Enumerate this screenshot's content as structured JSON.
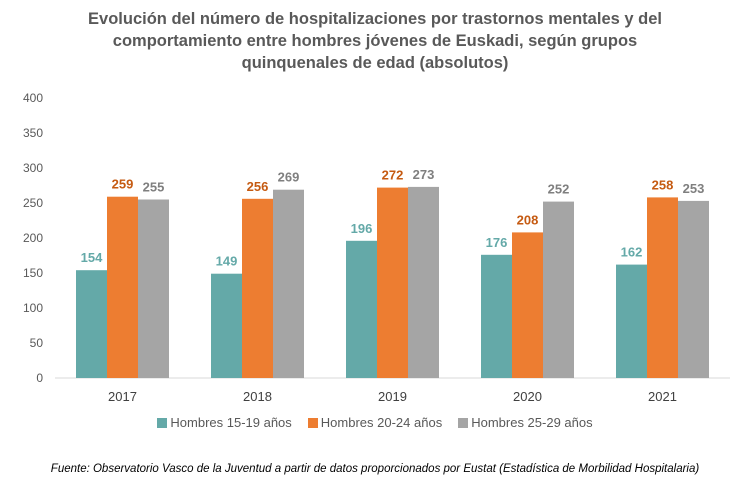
{
  "chart_data": {
    "type": "bar",
    "title": [
      "Evolución del número de hospitalizaciones por trastornos mentales y del",
      "comportamiento entre hombres jóvenes de Euskadi, según grupos",
      "quinquenales de edad (absolutos)"
    ],
    "categories": [
      "2017",
      "2018",
      "2019",
      "2020",
      "2021"
    ],
    "series": [
      {
        "name": "Hombres 15-19 años",
        "values": [
          154,
          149,
          196,
          176,
          162
        ],
        "color": "#64a9a8",
        "label_color": "#64a9a8"
      },
      {
        "name": "Hombres 20-24 años",
        "values": [
          259,
          256,
          272,
          208,
          258
        ],
        "color": "#ed7d31",
        "label_color": "#c55a11"
      },
      {
        "name": "Hombres 25-29 años",
        "values": [
          255,
          269,
          273,
          252,
          253
        ],
        "color": "#a5a5a5",
        "label_color": "#7f7f7f"
      }
    ],
    "ylim": [
      0,
      400
    ],
    "yticks": [
      0,
      50,
      100,
      150,
      200,
      250,
      300,
      350,
      400
    ],
    "grid": false,
    "legend_position": "bottom",
    "xlabel": "",
    "ylabel": ""
  },
  "source": "Fuente: Observatorio Vasco de la Juventud a partir de datos proporcionados por Eustat (Estadística de Morbilidad Hospitalaria)"
}
